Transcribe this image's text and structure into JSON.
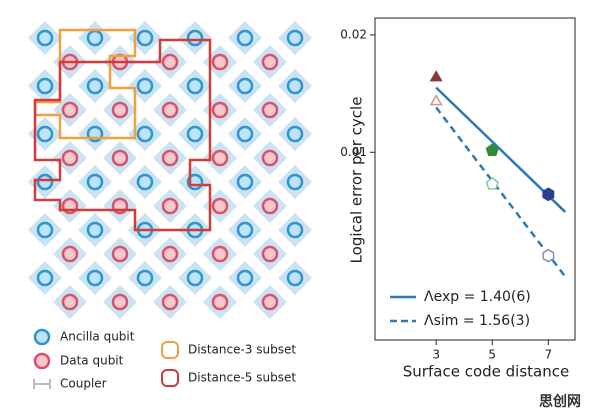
{
  "legend": {
    "ancilla": "Ancilla qubit",
    "data": "Data qubit",
    "coupler": "Coupler",
    "d3": "Distance-3 subset",
    "d5": "Distance-5 subset"
  },
  "watermark": "思创网",
  "chart_data": {
    "type": "line",
    "ylabel": "Logical error per cycle",
    "xlabel": "Surface code distance",
    "xlim": [
      0.82,
      7.95
    ],
    "xticks": [
      3,
      5,
      7
    ],
    "ylim": [
      0.0033,
      0.0221
    ],
    "yticks": [
      0.02,
      0.01
    ],
    "yscale": "log",
    "series": [
      {
        "name": "Λexp = 1.40(6)",
        "color": "#2a7ab8",
        "dash": false,
        "x": [
          3,
          7.6
        ],
        "values": [
          0.01465,
          0.00703
        ]
      },
      {
        "name": "Λsim = 1.56(3)",
        "color": "#2a7ab8",
        "dash": true,
        "x": [
          3,
          7.6
        ],
        "values": [
          0.01303,
          0.0048
        ]
      }
    ],
    "points": [
      {
        "x": [
          3,
          5,
          7
        ],
        "values": [
          0.01554,
          0.01011,
          0.0078
        ],
        "colors": [
          "#8b3a3a",
          "#2e8b3a",
          "#2a3f8f"
        ],
        "markers": [
          "triangle",
          "pentagon",
          "hexagon"
        ],
        "filled": true
      },
      {
        "x": [
          3,
          5,
          7
        ],
        "values": [
          0.01349,
          0.00829,
          0.00543
        ],
        "colors": [
          "#d9928a",
          "#7fcf95",
          "#7f8fcf"
        ],
        "markers": [
          "triangle",
          "pentagon",
          "hexagon"
        ],
        "filled": false
      }
    ]
  }
}
